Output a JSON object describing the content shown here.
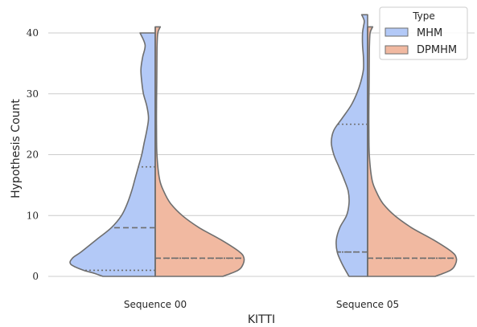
{
  "chart_data": {
    "type": "violin",
    "split": true,
    "xlabel": "KITTI",
    "ylabel": "Hypothesis Count",
    "categories": [
      "Sequence 00",
      "Sequence 05"
    ],
    "yticks": [
      0,
      10,
      20,
      30,
      40
    ],
    "ylim": [
      -1.5,
      44
    ],
    "grid": "horizontal",
    "legend": {
      "title": "Type",
      "position": "top-right",
      "entries": [
        "MHM",
        "DPMHM"
      ]
    },
    "colors": {
      "MHM": "#b3c9f7",
      "DPMHM": "#f1b9a1",
      "outline": "#6e6e6e",
      "grid": "#cccccc"
    },
    "series": [
      {
        "name": "MHM",
        "side": "left",
        "quartiles": [
          [
            1,
            8,
            18
          ],
          [
            4,
            4,
            25
          ]
        ],
        "density_y": [
          [
            0,
            0.5,
            1,
            2,
            3,
            4,
            6,
            8,
            10,
            12,
            14,
            16,
            18,
            20,
            22,
            24,
            26,
            28,
            30,
            32,
            34,
            36,
            38,
            40
          ],
          [
            0,
            2,
            4,
            6,
            8,
            10,
            12,
            14,
            16,
            18,
            20,
            22,
            24,
            26,
            28,
            30,
            32,
            34,
            36,
            38,
            40,
            41,
            42,
            43
          ]
        ],
        "density_w": [
          [
            0.62,
            0.72,
            0.85,
            1.0,
            0.98,
            0.88,
            0.7,
            0.52,
            0.4,
            0.33,
            0.28,
            0.24,
            0.2,
            0.16,
            0.13,
            0.1,
            0.08,
            0.1,
            0.14,
            0.16,
            0.17,
            0.15,
            0.12,
            0.18
          ],
          [
            0.22,
            0.3,
            0.36,
            0.37,
            0.33,
            0.25,
            0.22,
            0.23,
            0.28,
            0.34,
            0.4,
            0.43,
            0.4,
            0.3,
            0.2,
            0.13,
            0.08,
            0.05,
            0.05,
            0.06,
            0.06,
            0.05,
            0.04,
            0.07
          ]
        ]
      },
      {
        "name": "DPMHM",
        "side": "right",
        "quartiles": [
          [
            3,
            3,
            3
          ],
          [
            3,
            3,
            3
          ]
        ],
        "density_y": [
          [
            0,
            1,
            2,
            3,
            4,
            6,
            8,
            10,
            12,
            14,
            16,
            20,
            24,
            28,
            32,
            36,
            38,
            40,
            41
          ],
          [
            0,
            1,
            2,
            3,
            4,
            6,
            8,
            10,
            12,
            14,
            16,
            20,
            24,
            28,
            32,
            36,
            38,
            40,
            41
          ]
        ],
        "density_w": [
          [
            0.8,
            0.98,
            1.04,
            1.05,
            1.0,
            0.78,
            0.52,
            0.32,
            0.18,
            0.1,
            0.05,
            0.02,
            0.015,
            0.015,
            0.018,
            0.02,
            0.022,
            0.03,
            0.06
          ],
          [
            0.8,
            0.98,
            1.04,
            1.05,
            1.0,
            0.78,
            0.52,
            0.32,
            0.18,
            0.1,
            0.05,
            0.02,
            0.015,
            0.015,
            0.018,
            0.02,
            0.022,
            0.03,
            0.06
          ]
        ]
      }
    ]
  }
}
